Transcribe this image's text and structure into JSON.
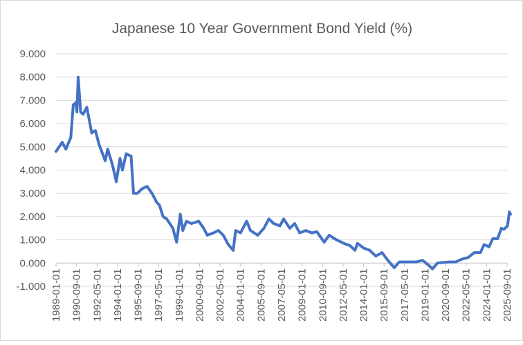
{
  "chart_data": {
    "type": "line",
    "title": "Japanese 10 Year Government Bond Yield (%)",
    "xlabel": "",
    "ylabel": "",
    "ylim": [
      -1,
      9
    ],
    "yticks": [
      "-1.000",
      "0.000",
      "1.000",
      "2.000",
      "3.000",
      "4.000",
      "5.000",
      "6.000",
      "7.000",
      "8.000",
      "9.000"
    ],
    "xticks": [
      "1989-01-01",
      "1990-09-01",
      "1992-05-01",
      "1994-01-01",
      "1995-09-01",
      "1997-05-01",
      "1999-01-01",
      "2000-09-01",
      "2002-05-01",
      "2004-01-01",
      "2005-09-01",
      "2007-05-01",
      "2009-01-01",
      "2010-09-01",
      "2012-05-01",
      "2014-01-01",
      "2015-09-01",
      "2017-05-01",
      "2019-01-01",
      "2020-09-01",
      "2022-05-01",
      "2024-01-01",
      "2025-09-01"
    ],
    "grid": true,
    "legend": "none",
    "color": "#4472C4",
    "series": [
      {
        "name": "Japanese 10 Year Government Bond Yield (%)",
        "x": [
          1989.0,
          1989.5,
          1989.8,
          1990.2,
          1990.4,
          1990.6,
          1990.7,
          1990.8,
          1991.0,
          1991.2,
          1991.5,
          1991.9,
          1992.2,
          1992.5,
          1993.0,
          1993.2,
          1993.6,
          1993.9,
          1994.2,
          1994.4,
          1994.7,
          1995.1,
          1995.3,
          1995.6,
          1996.0,
          1996.4,
          1996.8,
          1997.2,
          1997.4,
          1997.7,
          1998.0,
          1998.5,
          1998.8,
          1999.1,
          1999.3,
          1999.6,
          2000.0,
          2000.6,
          2001.0,
          2001.3,
          2001.8,
          2002.2,
          2002.6,
          2003.0,
          2003.4,
          2003.6,
          2004.0,
          2004.5,
          2004.8,
          2005.4,
          2005.9,
          2006.3,
          2006.7,
          2007.2,
          2007.5,
          2008.0,
          2008.4,
          2008.8,
          2009.3,
          2009.8,
          2010.2,
          2010.8,
          2011.2,
          2011.8,
          2012.4,
          2012.9,
          2013.3,
          2013.5,
          2014.0,
          2014.5,
          2015.0,
          2015.5,
          2016.0,
          2016.5,
          2016.9,
          2017.5,
          2018.3,
          2018.8,
          2019.2,
          2019.6,
          2020.0,
          2020.5,
          2021.0,
          2021.5,
          2022.0,
          2022.5,
          2023.0,
          2023.5,
          2023.8,
          2024.2,
          2024.5,
          2024.9,
          2025.2,
          2025.4,
          2025.7,
          2025.85,
          2025.95
        ],
        "values": [
          4.8,
          5.2,
          4.9,
          5.4,
          6.8,
          6.9,
          6.5,
          8.0,
          6.5,
          6.4,
          6.7,
          5.6,
          5.7,
          5.1,
          4.4,
          4.9,
          4.2,
          3.5,
          4.5,
          4.0,
          4.7,
          4.6,
          3.0,
          3.0,
          3.2,
          3.3,
          3.0,
          2.6,
          2.5,
          2.0,
          1.9,
          1.5,
          0.9,
          2.1,
          1.4,
          1.8,
          1.7,
          1.8,
          1.5,
          1.2,
          1.3,
          1.4,
          1.2,
          0.8,
          0.55,
          1.4,
          1.3,
          1.8,
          1.4,
          1.2,
          1.5,
          1.9,
          1.7,
          1.6,
          1.9,
          1.5,
          1.7,
          1.3,
          1.4,
          1.3,
          1.35,
          0.9,
          1.2,
          1.0,
          0.85,
          0.75,
          0.55,
          0.85,
          0.65,
          0.55,
          0.3,
          0.45,
          0.1,
          -0.2,
          0.05,
          0.05,
          0.05,
          0.12,
          -0.05,
          -0.25,
          0.0,
          0.03,
          0.05,
          0.05,
          0.17,
          0.24,
          0.45,
          0.45,
          0.8,
          0.7,
          1.05,
          1.05,
          1.5,
          1.45,
          1.6,
          2.2,
          2.1
        ]
      }
    ]
  }
}
